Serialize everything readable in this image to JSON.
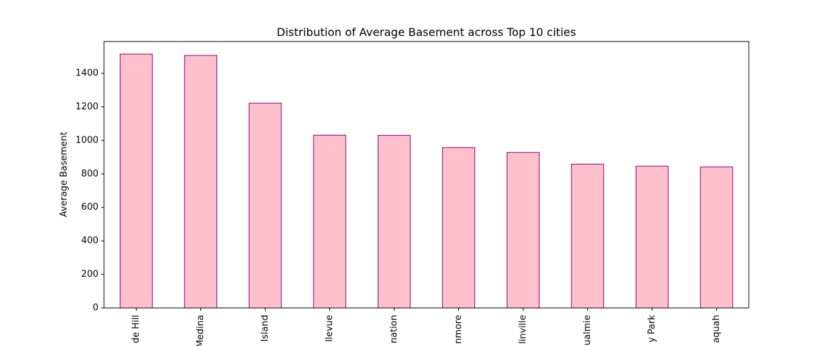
{
  "chart_data": {
    "type": "bar",
    "title": "Distribution of Average Basement across Top 10 cities",
    "xlabel": "",
    "ylabel": "Average Basement",
    "categories": [
      "de Hill",
      "Medina",
      "Island",
      "llevue",
      "nation",
      "nmore",
      "linville",
      "ualmie",
      "y Park",
      "aquah"
    ],
    "values": [
      1515,
      1507,
      1222,
      1031,
      1030,
      957,
      928,
      858,
      846,
      842
    ],
    "ylim": [
      0,
      1590
    ],
    "yticks": [
      0,
      200,
      400,
      600,
      800,
      1000,
      1200,
      1400
    ],
    "grid": false,
    "legend": "none",
    "colors": {
      "bar_fill": "#ffc0cb",
      "bar_edge": "#800080"
    }
  }
}
